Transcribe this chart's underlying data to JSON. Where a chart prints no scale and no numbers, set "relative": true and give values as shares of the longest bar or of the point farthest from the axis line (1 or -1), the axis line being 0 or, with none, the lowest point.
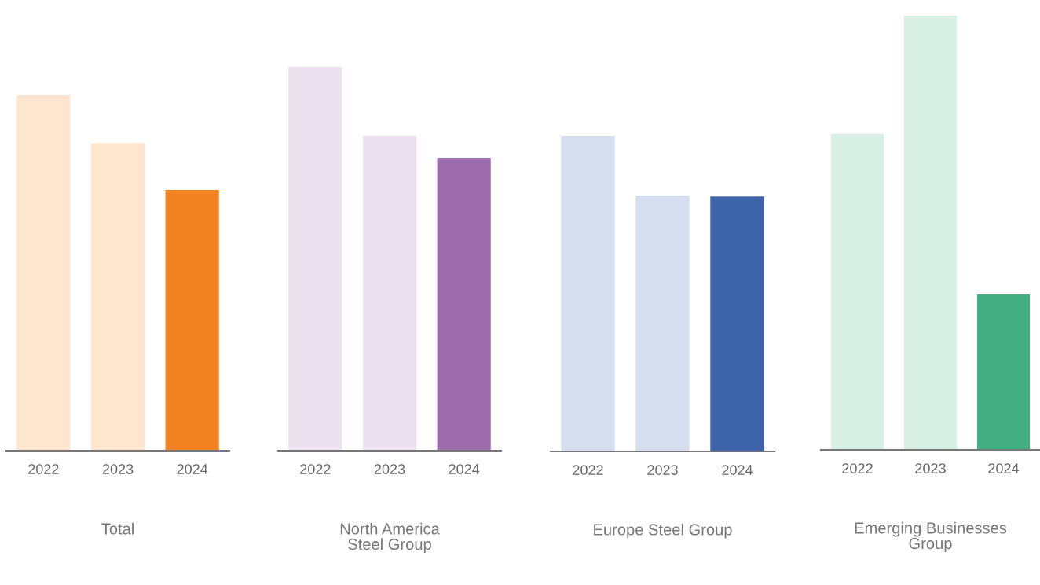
{
  "chart_data": [
    {
      "type": "bar",
      "relative": true,
      "xlabel": "Total",
      "categories": [
        "2022",
        "2023",
        "2024"
      ],
      "values": [
        1,
        0.865,
        0.733
      ],
      "colors": [
        "#fde5d0",
        "#fde5d0",
        "#f38321"
      ]
    },
    {
      "type": "bar",
      "relative": true,
      "xlabel": "North America\nSteel Group",
      "categories": [
        "2022",
        "2023",
        "2024"
      ],
      "values": [
        1,
        0.82,
        0.763
      ],
      "colors": [
        "#ece1ef",
        "#ece1ef",
        "#9e6cad"
      ]
    },
    {
      "type": "bar",
      "relative": true,
      "xlabel": "Europe Steel Group",
      "categories": [
        "2022",
        "2023",
        "2024"
      ],
      "values": [
        1,
        0.811,
        0.808
      ],
      "colors": [
        "#d5deee",
        "#d5deee",
        "#3d64a8"
      ]
    },
    {
      "type": "bar",
      "relative": true,
      "xlabel": "Emerging Businesses\nGroup",
      "categories": [
        "2022",
        "2023",
        "2024"
      ],
      "values": [
        0.727,
        1,
        0.358
      ],
      "colors": [
        "#d9f0e6",
        "#d9f0e6",
        "#44ae83"
      ]
    }
  ]
}
